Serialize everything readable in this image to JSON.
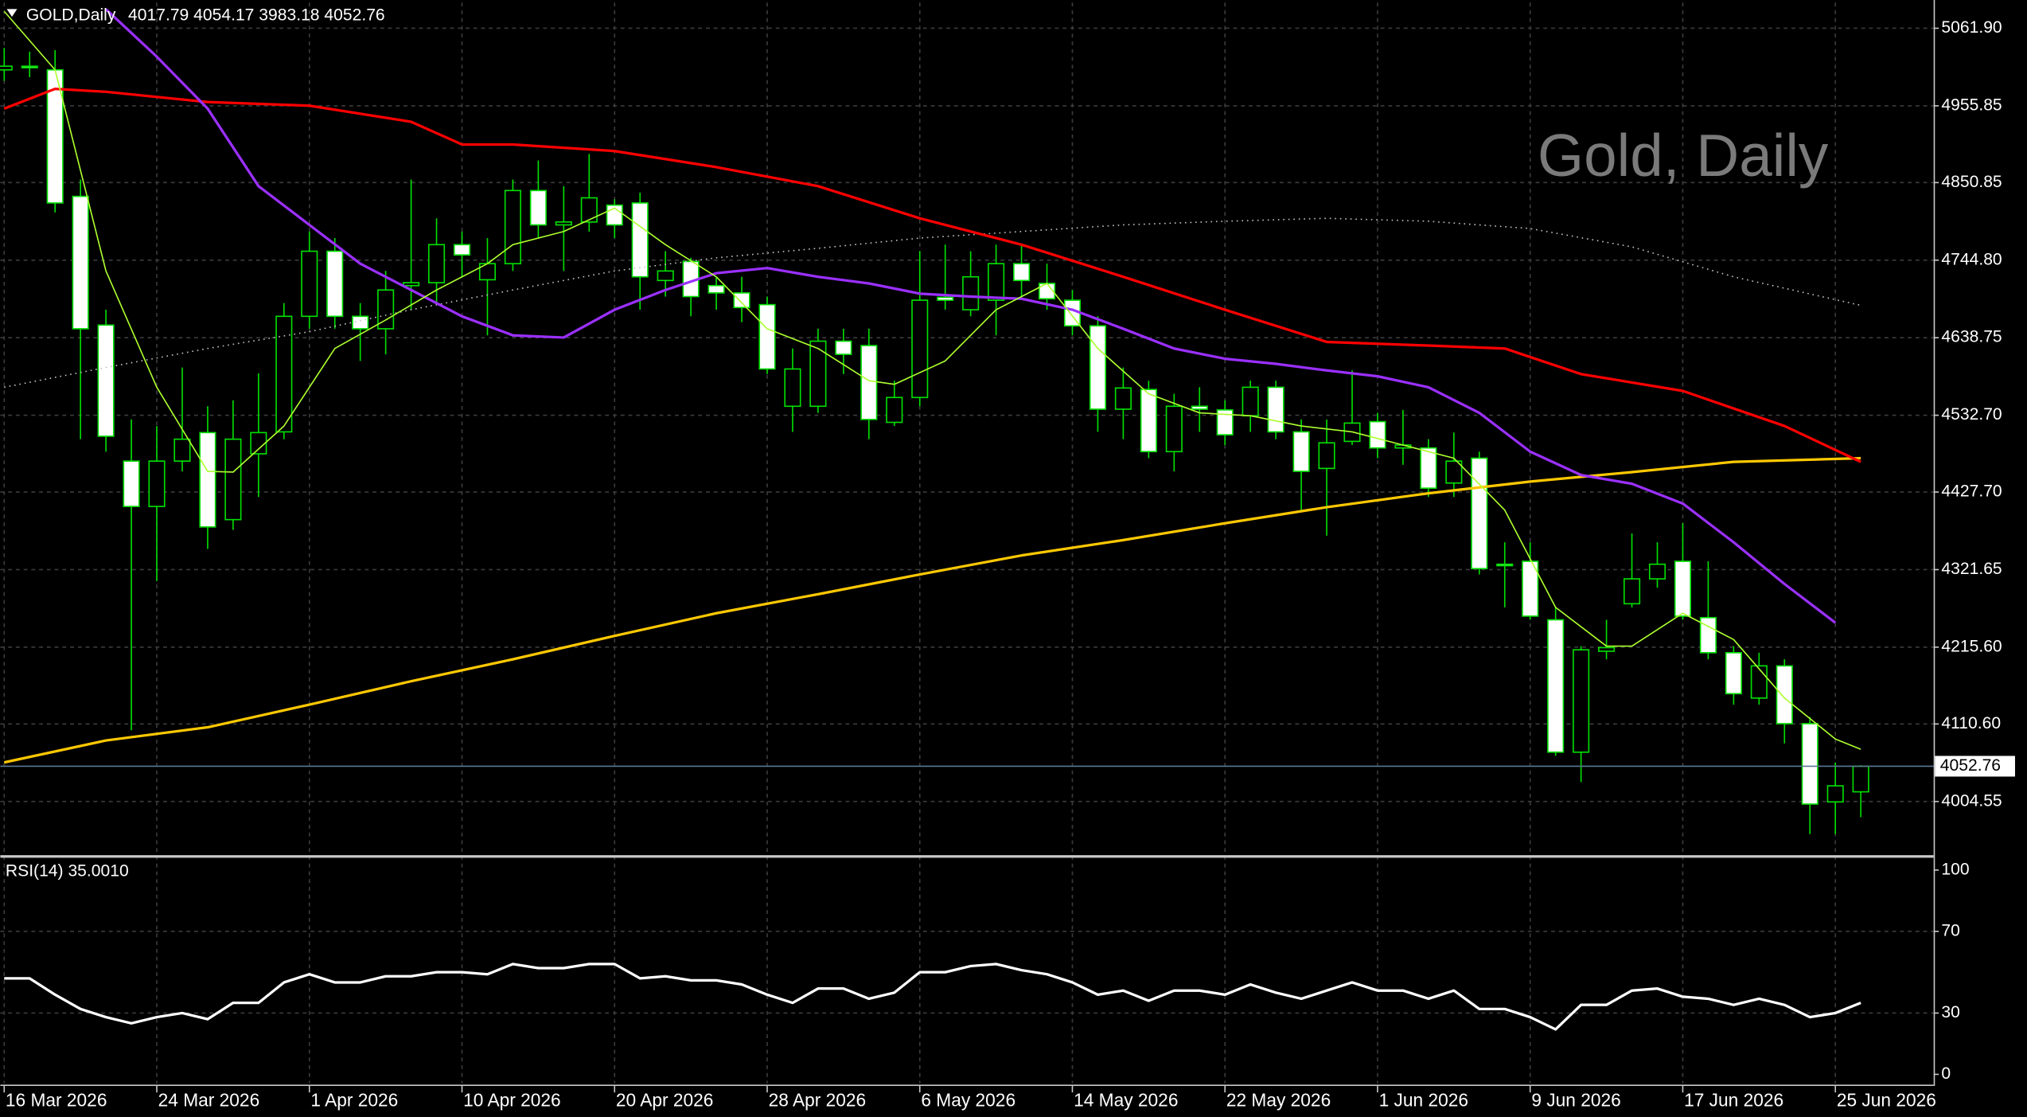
{
  "chart_data": {
    "type": "candlestick",
    "symbol_label": "GOLD,Daily",
    "watermark": "Gold, Daily",
    "grid": true,
    "categories": [
      "16 Mar 2026",
      null,
      null,
      null,
      null,
      null,
      "24 Mar 2026",
      null,
      null,
      null,
      null,
      null,
      "1 Apr 2026",
      null,
      null,
      null,
      null,
      null,
      "10 Apr 2026",
      null,
      null,
      null,
      null,
      null,
      "20 Apr 2026",
      null,
      null,
      null,
      null,
      null,
      "28 Apr 2026",
      null,
      null,
      null,
      null,
      null,
      "6 May 2026",
      null,
      null,
      null,
      null,
      null,
      "14 May 2026",
      null,
      null,
      null,
      null,
      null,
      "22 May 2026",
      null,
      null,
      null,
      null,
      null,
      "1 Jun 2026",
      null,
      null,
      null,
      null,
      null,
      "9 Jun 2026",
      null,
      null,
      null,
      null,
      null,
      "17 Jun 2026",
      null,
      null,
      null,
      null,
      null,
      "25 Jun 2026",
      null
    ],
    "candles": {
      "up_color": "#000000",
      "down_color": "#ffffff",
      "wick_color": "#00e000",
      "open": [
        5005,
        5010,
        5005,
        4832,
        4656,
        4470,
        4408,
        4470,
        4509,
        4390,
        4480,
        4510,
        4668,
        4757,
        4668,
        4651,
        4710,
        4714,
        4766,
        4718,
        4740,
        4840,
        4793,
        4797,
        4820,
        4823,
        4717,
        4743,
        4710,
        4700,
        4684,
        4545,
        4545,
        4634,
        4628,
        4523,
        4557,
        4694,
        4677,
        4690,
        4740,
        4713,
        4690,
        4655,
        4541,
        4568,
        4483,
        4545,
        4540,
        4532,
        4571,
        4510,
        4460,
        4497,
        4524,
        4488,
        4488,
        4440,
        4474,
        4329,
        4333,
        4253,
        4072,
        4210,
        4275,
        4309,
        4333,
        4256,
        4208,
        4146,
        4190,
        4111,
        4004,
        4017.79
      ],
      "high": [
        5035,
        5030,
        5032,
        4855,
        4677,
        4527,
        4518,
        4598,
        4545,
        4553,
        4590,
        4686,
        4784,
        4775,
        4686,
        4730,
        4855,
        4802,
        4784,
        4775,
        4855,
        4881,
        4846,
        4890,
        4828,
        4837,
        4757,
        4748,
        4722,
        4722,
        4695,
        4624,
        4651,
        4651,
        4651,
        4580,
        4757,
        4766,
        4757,
        4766,
        4766,
        4740,
        4704,
        4668,
        4598,
        4580,
        4562,
        4571,
        4553,
        4580,
        4580,
        4527,
        4527,
        4594,
        4536,
        4540,
        4500,
        4509,
        4483,
        4359,
        4359,
        4270,
        4217,
        4253,
        4371,
        4359,
        4385,
        4333,
        4217,
        4208,
        4199,
        4120,
        4058,
        4054.17
      ],
      "low": [
        4990,
        4995,
        4810,
        4500,
        4483,
        4102,
        4306,
        4456,
        4350,
        4376,
        4421,
        4500,
        4651,
        4651,
        4607,
        4616,
        4677,
        4686,
        4722,
        4642,
        4730,
        4775,
        4730,
        4784,
        4775,
        4677,
        4695,
        4668,
        4677,
        4660,
        4589,
        4510,
        4536,
        4589,
        4500,
        4518,
        4545,
        4677,
        4668,
        4642,
        4695,
        4677,
        4642,
        4510,
        4500,
        4474,
        4456,
        4510,
        4492,
        4510,
        4500,
        4403,
        4368,
        4492,
        4474,
        4465,
        4421,
        4421,
        4315,
        4270,
        4253,
        4067,
        4031,
        4199,
        4270,
        4297,
        4253,
        4199,
        4137,
        4137,
        4084,
        3960,
        3960,
        3983.18
      ],
      "close": [
        5010,
        5008,
        4823,
        4651,
        4504,
        4408,
        4470,
        4500,
        4380,
        4500,
        4509,
        4668,
        4757,
        4668,
        4651,
        4704,
        4714,
        4766,
        4752,
        4740,
        4840,
        4793,
        4797,
        4830,
        4793,
        4722,
        4730,
        4695,
        4700,
        4680,
        4596,
        4596,
        4634,
        4616,
        4527,
        4557,
        4690,
        4690,
        4722,
        4740,
        4717,
        4692,
        4655,
        4541,
        4570,
        4483,
        4545,
        4541,
        4506,
        4571,
        4510,
        4456,
        4495,
        4522,
        4488,
        4492,
        4433,
        4470,
        4323,
        4327,
        4258,
        4072,
        4212,
        4215,
        4309,
        4329,
        4258,
        4208,
        4152,
        4190,
        4111,
        4001,
        4026,
        4052.76
      ]
    },
    "ylim": [
      3932,
      5097
    ],
    "yticks": [
      {
        "value": 5061.9,
        "label": "5061.90"
      },
      4955.85,
      {
        "value": 4850.85,
        "label": "4850.85"
      },
      {
        "value": 4744.8,
        "label": "4744.80"
      },
      4638.75,
      {
        "value": 4532.7,
        "label": "4532.70"
      },
      {
        "value": 4427.7,
        "label": "4427.70"
      },
      4321.65,
      {
        "value": 4215.6,
        "label": "4215.60"
      },
      {
        "value": 4110.6,
        "label": "4110.60"
      },
      4004.55
    ],
    "current_price_line_color": "#5a7894",
    "moving_averages": [
      {
        "color": "#c0c0c0",
        "width": 1,
        "dashed": true,
        "x": [
          0,
          4,
          8,
          12,
          16,
          20,
          24,
          28,
          32,
          36,
          40,
          44,
          48,
          52,
          56,
          60,
          64,
          68,
          73
        ],
        "values": [
          4571,
          4598,
          4624,
          4647,
          4677,
          4704,
          4730,
          4748,
          4761,
          4775,
          4784,
          4793,
          4798,
          4802,
          4798,
          4788,
          4763,
          4722,
          4683
        ]
      },
      {
        "color": "#ffc800",
        "width": 2,
        "dashed": false,
        "x": [
          0,
          4,
          8,
          12,
          16,
          20,
          24,
          28,
          32,
          36,
          40,
          44,
          48,
          52,
          56,
          60,
          64,
          68,
          73
        ],
        "values": [
          4058,
          4088,
          4106,
          4137,
          4169,
          4199,
          4231,
          4262,
          4288,
          4315,
          4341,
          4362,
          4385,
          4407,
          4426,
          4442,
          4455,
          4469,
          4474
        ]
      },
      {
        "color": "#ff0000",
        "width": 2,
        "dashed": false,
        "x": [
          0,
          2,
          4,
          8,
          12,
          16,
          18,
          20,
          24,
          28,
          32,
          36,
          40,
          44,
          48,
          52,
          56,
          59,
          62,
          66,
          70,
          73
        ],
        "values": [
          4952,
          4979,
          4975,
          4961,
          4956,
          4934,
          4903,
          4903,
          4894,
          4872,
          4846,
          4802,
          4766,
          4722,
          4677,
          4633,
          4628,
          4624,
          4589,
          4566,
          4518,
          4469
        ]
      },
      {
        "color": "#9b30ff",
        "width": 2,
        "dashed": false,
        "x": [
          4,
          6,
          8,
          10,
          12,
          14,
          16,
          18,
          20,
          22,
          24,
          26,
          28,
          30,
          32,
          34,
          36,
          38,
          40,
          42,
          44,
          46,
          48,
          50,
          52,
          54,
          56,
          58,
          60,
          62,
          64,
          66,
          68,
          70,
          72
        ],
        "values": [
          5088,
          5023,
          4952,
          4846,
          4793,
          4740,
          4704,
          4668,
          4642,
          4639,
          4677,
          4704,
          4727,
          4734,
          4722,
          4713,
          4699,
          4695,
          4692,
          4677,
          4651,
          4624,
          4610,
          4603,
          4594,
          4586,
          4571,
          4536,
          4483,
          4451,
          4439,
          4412,
          4359,
          4302,
          4249
        ]
      },
      {
        "color": "#adff2f",
        "width": 1,
        "dashed": false,
        "x": [
          0,
          2,
          4,
          6,
          8,
          9,
          11,
          13,
          15,
          17,
          19,
          20,
          22,
          24,
          26,
          28,
          30,
          32,
          34,
          35,
          37,
          39,
          41,
          43,
          45,
          47,
          49,
          51,
          53,
          55,
          57,
          59,
          61,
          63,
          64,
          66,
          68,
          70,
          72,
          73
        ],
        "values": [
          5085,
          5005,
          4730,
          4571,
          4456,
          4455,
          4518,
          4624,
          4663,
          4704,
          4740,
          4766,
          4784,
          4816,
          4766,
          4722,
          4651,
          4624,
          4580,
          4575,
          4607,
          4677,
          4713,
          4624,
          4562,
          4536,
          4532,
          4518,
          4510,
          4492,
          4474,
          4403,
          4270,
          4217,
          4217,
          4262,
          4226,
          4146,
          4090,
          4076
        ]
      }
    ],
    "rsi": {
      "name": "RSI(14)",
      "current_label": "35.0010",
      "color": "#ffffff",
      "ylim": [
        0,
        100
      ],
      "yticks": [
        100,
        70,
        30,
        0
      ],
      "values": [
        47,
        47,
        39,
        32,
        28,
        25,
        28,
        30,
        27,
        35,
        35,
        45,
        49,
        45,
        45,
        48,
        48,
        50,
        50,
        49,
        54,
        52,
        52,
        54,
        54,
        47,
        48,
        46,
        46,
        44,
        39,
        35,
        42,
        42,
        37,
        40,
        50,
        50,
        53,
        54,
        51,
        49,
        45,
        39,
        41,
        36,
        41,
        41,
        39,
        44,
        40,
        37,
        41,
        45,
        41,
        41,
        37,
        41,
        32,
        32,
        28,
        22,
        34,
        34,
        41,
        42,
        38,
        37,
        34,
        37,
        34,
        28,
        30,
        35.001
      ]
    }
  }
}
